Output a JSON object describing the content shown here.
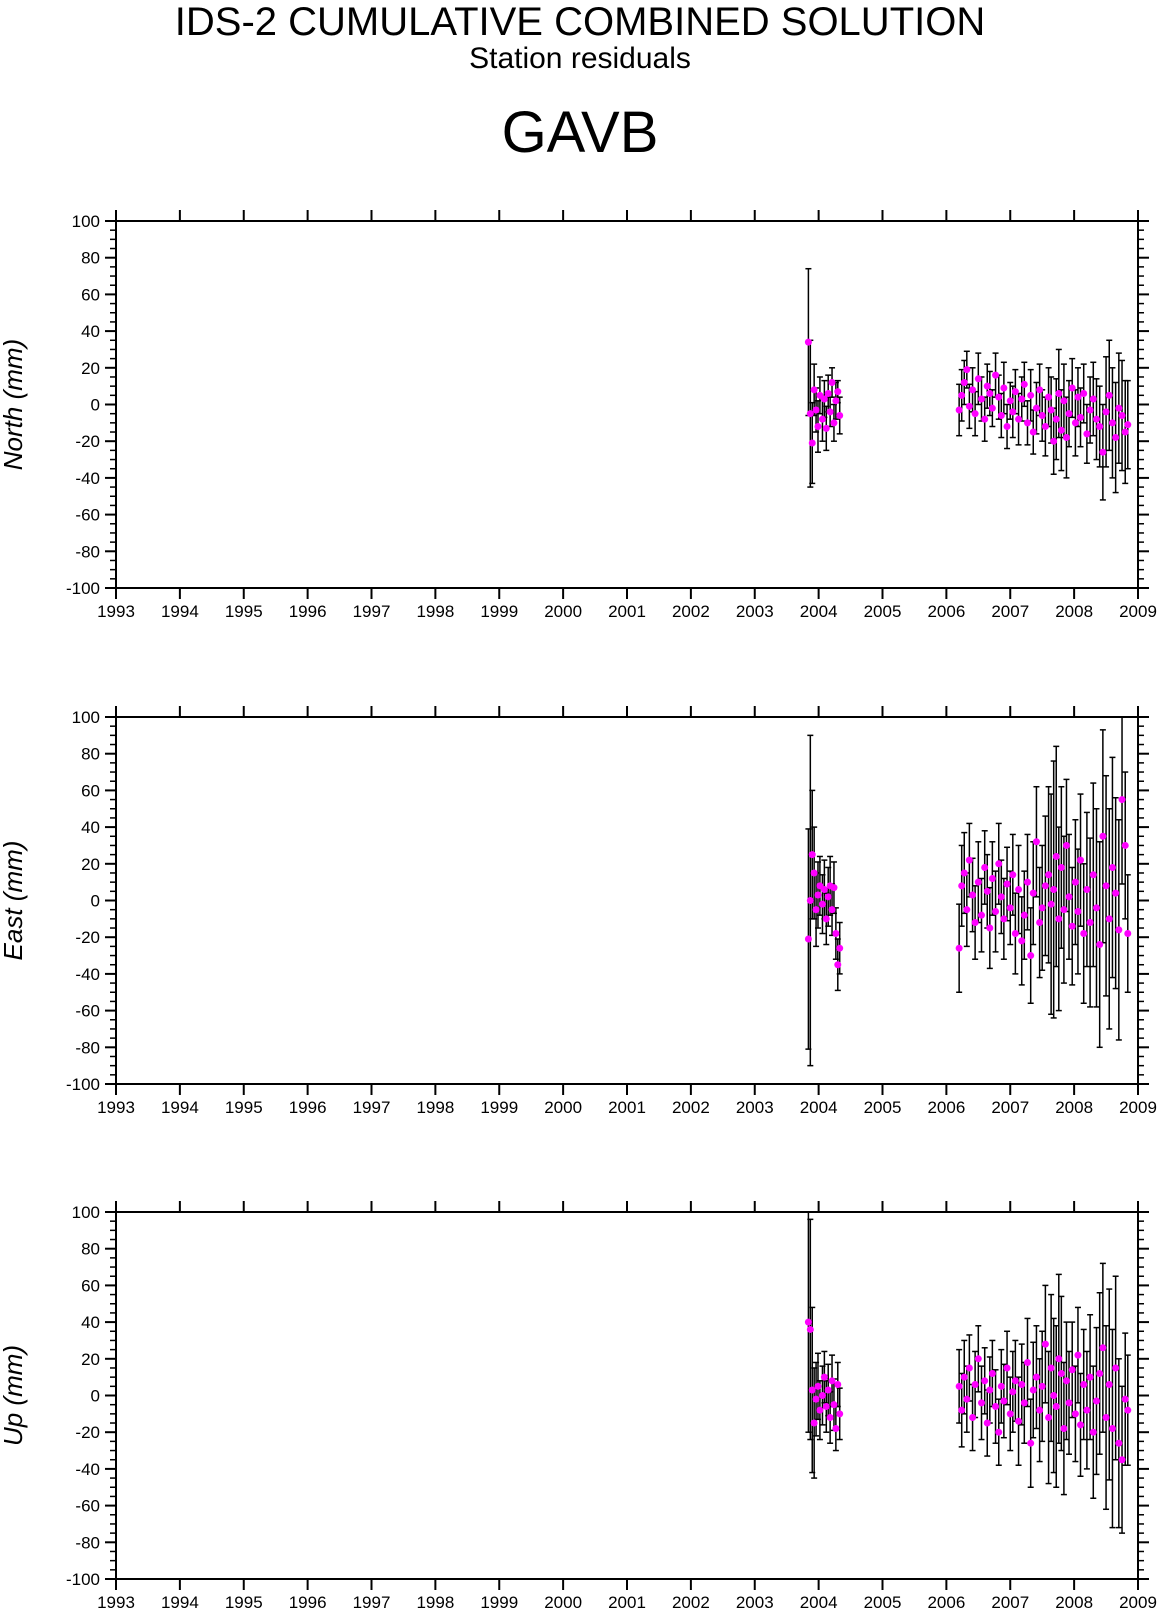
{
  "header": {
    "title": "IDS-2 CUMULATIVE COMBINED SOLUTION",
    "subtitle": "Station residuals",
    "station": "GAVB"
  },
  "colors": {
    "marker": "#ff00ff",
    "errorbar": "#000000",
    "axis": "#000000"
  },
  "chart_data": [
    {
      "type": "scatter",
      "panel": "north",
      "ylabel": "North (mm)",
      "xlim": [
        1993,
        2009
      ],
      "ylim": [
        -100,
        100
      ],
      "x_ticks": [
        "1993",
        "1994",
        "1995",
        "1996",
        "1997",
        "1998",
        "1999",
        "2000",
        "2001",
        "2002",
        "2003",
        "2004",
        "2005",
        "2006",
        "2007",
        "2008",
        "2009"
      ],
      "y_ticks": [
        "100",
        "80",
        "60",
        "40",
        "20",
        "0",
        "-20",
        "-40",
        "-60",
        "-80",
        "-100"
      ],
      "grid": false,
      "series": [
        {
          "x": [
            2003.84,
            2003.87,
            2003.9,
            2003.93,
            2003.96,
            2003.99,
            2004.02,
            2004.06,
            2004.09,
            2004.12,
            2004.15,
            2004.18,
            2004.21,
            2004.24,
            2004.27,
            2004.3,
            2004.33,
            2006.2,
            2006.24,
            2006.28,
            2006.32,
            2006.36,
            2006.41,
            2006.45,
            2006.5,
            2006.55,
            2006.6,
            2006.64,
            2006.68,
            2006.72,
            2006.77,
            2006.82,
            2006.86,
            2006.9,
            2006.95,
            2007.0,
            2007.04,
            2007.08,
            2007.13,
            2007.18,
            2007.22,
            2007.27,
            2007.32,
            2007.36,
            2007.41,
            2007.46,
            2007.5,
            2007.55,
            2007.6,
            2007.64,
            2007.68,
            2007.72,
            2007.76,
            2007.8,
            2007.84,
            2007.88,
            2007.92,
            2007.97,
            2008.02,
            2008.06,
            2008.1,
            2008.15,
            2008.2,
            2008.25,
            2008.3,
            2008.35,
            2008.4,
            2008.45,
            2008.5,
            2008.55,
            2008.6,
            2008.65,
            2008.7,
            2008.75,
            2008.8,
            2008.84
          ],
          "y": [
            34,
            -5,
            -21,
            8,
            -3,
            -12,
            5,
            -8,
            3,
            -13,
            6,
            -4,
            12,
            -10,
            2,
            7,
            -6,
            -3,
            5,
            12,
            19,
            -1,
            8,
            -5,
            14,
            3,
            -8,
            10,
            6,
            -2,
            16,
            4,
            -6,
            9,
            -12,
            2,
            -4,
            7,
            -8,
            3,
            11,
            -10,
            5,
            -15,
            -2,
            8,
            -6,
            -12,
            4,
            -3,
            -20,
            -8,
            6,
            -14,
            2,
            -18,
            -5,
            9,
            -10,
            4,
            -7,
            6,
            -16,
            -3,
            3,
            -8,
            -12,
            -26,
            -4,
            5,
            -10,
            -18,
            -2,
            -6,
            -15,
            -11
          ],
          "err": [
            40,
            40,
            22,
            14,
            12,
            14,
            10,
            12,
            10,
            12,
            10,
            8,
            8,
            10,
            10,
            6,
            10,
            14,
            14,
            12,
            10,
            12,
            12,
            12,
            14,
            12,
            12,
            12,
            12,
            10,
            12,
            12,
            12,
            14,
            12,
            10,
            14,
            12,
            14,
            12,
            12,
            12,
            14,
            12,
            14,
            14,
            14,
            16,
            16,
            18,
            18,
            22,
            24,
            22,
            20,
            22,
            18,
            16,
            18,
            16,
            16,
            16,
            16,
            18,
            20,
            22,
            22,
            26,
            30,
            30,
            30,
            30,
            30,
            30,
            28,
            24
          ]
        }
      ]
    },
    {
      "type": "scatter",
      "panel": "east",
      "ylabel": "East (mm)",
      "xlim": [
        1993,
        2009
      ],
      "ylim": [
        -100,
        100
      ],
      "x_ticks": [
        "1993",
        "1994",
        "1995",
        "1996",
        "1997",
        "1998",
        "1999",
        "2000",
        "2001",
        "2002",
        "2003",
        "2004",
        "2005",
        "2006",
        "2007",
        "2008",
        "2009"
      ],
      "y_ticks": [
        "100",
        "80",
        "60",
        "40",
        "20",
        "0",
        "-20",
        "-40",
        "-60",
        "-80",
        "-100"
      ],
      "grid": false,
      "series": [
        {
          "x": [
            2003.84,
            2003.87,
            2003.9,
            2003.93,
            2003.96,
            2003.99,
            2004.02,
            2004.06,
            2004.09,
            2004.12,
            2004.15,
            2004.18,
            2004.21,
            2004.24,
            2004.27,
            2004.3,
            2004.33,
            2006.2,
            2006.24,
            2006.28,
            2006.32,
            2006.36,
            2006.41,
            2006.45,
            2006.5,
            2006.55,
            2006.6,
            2006.64,
            2006.68,
            2006.72,
            2006.77,
            2006.82,
            2006.86,
            2006.9,
            2006.95,
            2007.0,
            2007.04,
            2007.08,
            2007.13,
            2007.18,
            2007.22,
            2007.27,
            2007.32,
            2007.36,
            2007.41,
            2007.46,
            2007.5,
            2007.55,
            2007.6,
            2007.64,
            2007.68,
            2007.72,
            2007.76,
            2007.8,
            2007.84,
            2007.88,
            2007.92,
            2007.97,
            2008.02,
            2008.06,
            2008.1,
            2008.15,
            2008.2,
            2008.25,
            2008.3,
            2008.35,
            2008.4,
            2008.45,
            2008.5,
            2008.55,
            2008.6,
            2008.65,
            2008.7,
            2008.75,
            2008.8,
            2008.84
          ],
          "y": [
            -21,
            0,
            25,
            15,
            -5,
            3,
            8,
            -2,
            6,
            -10,
            2,
            8,
            -5,
            7,
            -18,
            -35,
            -26,
            -26,
            8,
            15,
            -5,
            22,
            3,
            -12,
            10,
            -8,
            18,
            5,
            -15,
            12,
            -6,
            20,
            2,
            -10,
            9,
            -4,
            14,
            -18,
            6,
            -22,
            -8,
            10,
            -30,
            4,
            32,
            -12,
            -4,
            8,
            14,
            -2,
            6,
            24,
            -10,
            18,
            -5,
            30,
            2,
            -14,
            10,
            -6,
            22,
            -18,
            6,
            -12,
            14,
            -4,
            -24,
            35,
            8,
            -10,
            18,
            4,
            -16,
            55,
            30,
            -18
          ],
          "err": [
            60,
            90,
            35,
            25,
            20,
            18,
            16,
            16,
            16,
            14,
            16,
            16,
            14,
            14,
            14,
            14,
            14,
            24,
            22,
            22,
            20,
            20,
            20,
            20,
            22,
            20,
            20,
            20,
            22,
            20,
            22,
            22,
            20,
            22,
            20,
            20,
            22,
            22,
            24,
            24,
            24,
            26,
            26,
            28,
            30,
            30,
            34,
            38,
            48,
            60,
            70,
            60,
            50,
            44,
            40,
            36,
            34,
            32,
            34,
            34,
            36,
            38,
            42,
            46,
            50,
            54,
            56,
            58,
            60,
            60,
            60,
            52,
            60,
            46,
            40,
            32
          ]
        }
      ]
    },
    {
      "type": "scatter",
      "panel": "up",
      "ylabel": "Up (mm)",
      "xlim": [
        1993,
        2009
      ],
      "ylim": [
        -100,
        100
      ],
      "x_ticks": [
        "1993",
        "1994",
        "1995",
        "1996",
        "1997",
        "1998",
        "1999",
        "2000",
        "2001",
        "2002",
        "2003",
        "2004",
        "2005",
        "2006",
        "2007",
        "2008",
        "2009"
      ],
      "y_ticks": [
        "100",
        "80",
        "60",
        "40",
        "20",
        "0",
        "-20",
        "-40",
        "-60",
        "-80",
        "-100"
      ],
      "grid": false,
      "series": [
        {
          "x": [
            2003.84,
            2003.87,
            2003.9,
            2003.93,
            2003.96,
            2003.99,
            2004.02,
            2004.06,
            2004.09,
            2004.12,
            2004.15,
            2004.18,
            2004.21,
            2004.24,
            2004.27,
            2004.3,
            2004.33,
            2006.2,
            2006.24,
            2006.28,
            2006.32,
            2006.36,
            2006.41,
            2006.45,
            2006.5,
            2006.55,
            2006.6,
            2006.64,
            2006.68,
            2006.72,
            2006.77,
            2006.82,
            2006.86,
            2006.9,
            2006.95,
            2007.0,
            2007.04,
            2007.08,
            2007.13,
            2007.18,
            2007.22,
            2007.27,
            2007.32,
            2007.36,
            2007.41,
            2007.46,
            2007.5,
            2007.55,
            2007.6,
            2007.64,
            2007.68,
            2007.72,
            2007.76,
            2007.8,
            2007.84,
            2007.88,
            2007.92,
            2007.97,
            2008.02,
            2008.06,
            2008.1,
            2008.15,
            2008.2,
            2008.25,
            2008.3,
            2008.35,
            2008.4,
            2008.45,
            2008.5,
            2008.55,
            2008.6,
            2008.65,
            2008.7,
            2008.75,
            2008.8,
            2008.84
          ],
          "y": [
            40,
            36,
            3,
            -15,
            -2,
            5,
            -8,
            0,
            10,
            -6,
            3,
            -12,
            8,
            -5,
            -18,
            6,
            -10,
            5,
            -8,
            10,
            -2,
            15,
            -12,
            6,
            20,
            -4,
            8,
            -15,
            3,
            12,
            -6,
            -20,
            5,
            -3,
            15,
            -10,
            2,
            8,
            -14,
            6,
            -4,
            18,
            -26,
            3,
            10,
            -8,
            5,
            28,
            -12,
            15,
            0,
            -6,
            20,
            12,
            -18,
            8,
            -4,
            14,
            -10,
            22,
            -16,
            6,
            -8,
            10,
            -20,
            -3,
            12,
            26,
            -12,
            6,
            -18,
            15,
            -26,
            -35,
            -2,
            -8
          ],
          "err": [
            60,
            60,
            45,
            30,
            20,
            18,
            16,
            16,
            14,
            14,
            14,
            14,
            14,
            14,
            12,
            12,
            14,
            20,
            20,
            20,
            18,
            18,
            18,
            18,
            18,
            20,
            18,
            18,
            18,
            18,
            20,
            18,
            20,
            20,
            20,
            20,
            22,
            22,
            24,
            22,
            22,
            24,
            24,
            26,
            28,
            28,
            30,
            32,
            36,
            40,
            42,
            44,
            46,
            42,
            36,
            32,
            28,
            26,
            26,
            26,
            28,
            30,
            32,
            34,
            36,
            40,
            44,
            46,
            50,
            52,
            54,
            50,
            46,
            40,
            36,
            30
          ]
        }
      ]
    }
  ]
}
